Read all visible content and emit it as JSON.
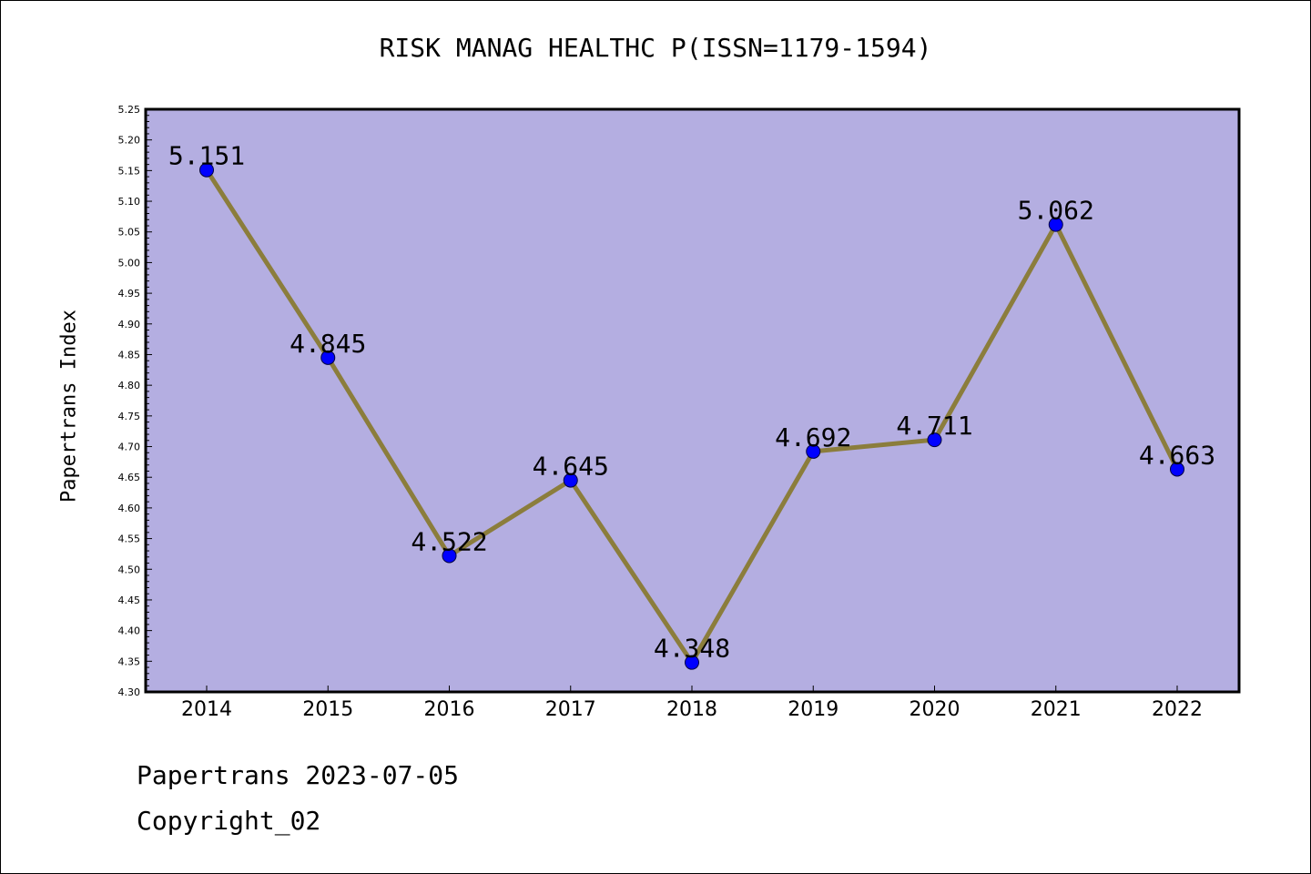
{
  "chart_data": {
    "type": "line",
    "title": "RISK MANAG HEALTHC P(ISSN=1179-1594)",
    "xlabel": "",
    "ylabel": "Papertrans Index",
    "categories": [
      "2014",
      "2015",
      "2016",
      "2017",
      "2018",
      "2019",
      "2020",
      "2021",
      "2022"
    ],
    "series": [
      {
        "values": [
          5.151,
          4.845,
          4.522,
          4.645,
          4.348,
          4.692,
          4.711,
          5.062,
          4.663
        ],
        "labels": [
          "5.151",
          "4.845",
          "4.522",
          "4.645",
          "4.348",
          "4.692",
          "4.711",
          "5.062",
          "4.663"
        ]
      }
    ],
    "ylim": [
      4.3,
      5.25
    ],
    "yticks": [
      "4.30",
      "4.35",
      "4.40",
      "4.45",
      "4.50",
      "4.55",
      "4.60",
      "4.65",
      "4.70",
      "4.75",
      "4.80",
      "4.85",
      "4.90",
      "4.95",
      "5.00",
      "5.05",
      "5.10",
      "5.15",
      "5.20",
      "5.25"
    ],
    "grid": false,
    "legend": "none"
  },
  "footer": {
    "line1": "Papertrans 2023-07-05",
    "line2": "Copyright_02"
  },
  "colors": {
    "plot_background": "#b4aee1",
    "line": "#8b7d3c",
    "marker": "#0000ff",
    "axis": "#000000"
  }
}
